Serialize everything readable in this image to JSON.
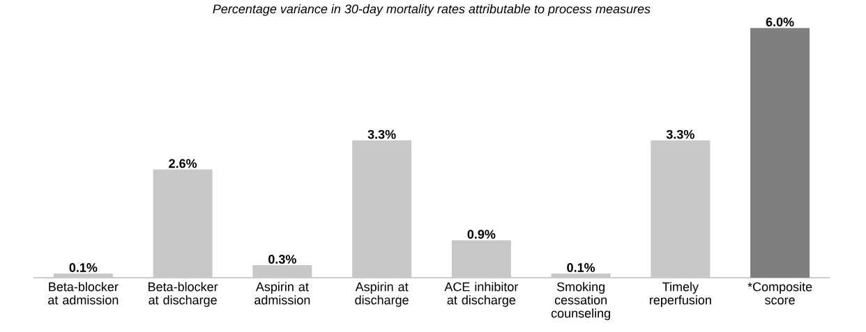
{
  "chart_data": {
    "type": "bar",
    "title": "Percentage variance in 30-day mortality rates attributable to process measures",
    "categories": [
      "Beta-blocker at admission",
      "Beta-blocker at discharge",
      "Aspirin at admission",
      "Aspirin at discharge",
      "ACE inhibitor at discharge",
      "Smoking cessation counseling",
      "Timely reperfusion",
      "*Composite score"
    ],
    "values": [
      0.1,
      2.6,
      0.3,
      3.3,
      0.9,
      0.1,
      3.3,
      6.0
    ],
    "colors": [
      "#c8c8c8",
      "#c8c8c8",
      "#c8c8c8",
      "#c8c8c8",
      "#c8c8c8",
      "#c8c8c8",
      "#c8c8c8",
      "#7f7f7f"
    ],
    "value_labels": [
      "0.1%",
      "2.6%",
      "0.3%",
      "3.3%",
      "0.9%",
      "0.1%",
      "3.3%",
      "6.0%"
    ]
  }
}
